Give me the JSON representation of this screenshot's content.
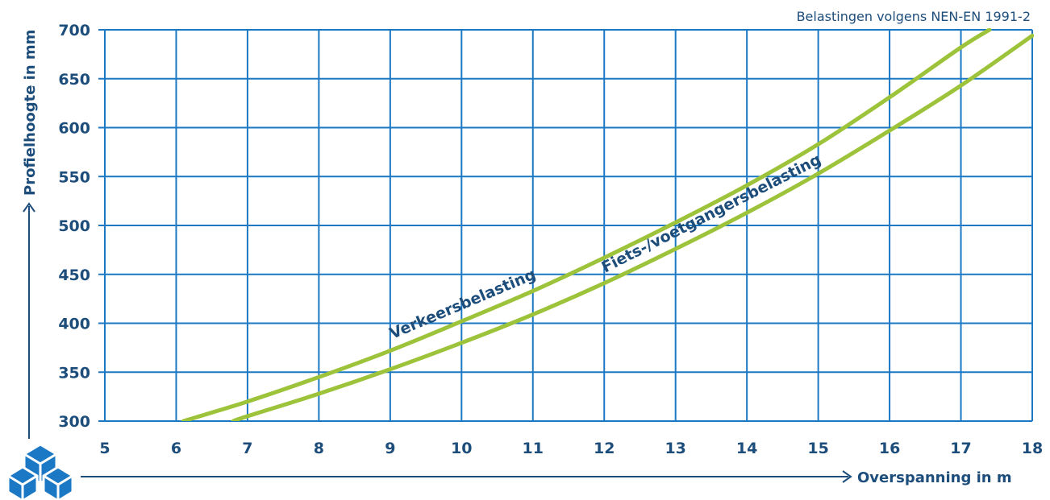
{
  "colors": {
    "grid": "#1b78c4",
    "curve": "#9dc33b",
    "text": "#1d4d7a",
    "axis": "#1d4d7a",
    "logo": "#1b78c4"
  },
  "chart_data": {
    "type": "line",
    "note": "Belastingen volgens NEN-EN 1991-2",
    "xlabel": "Overspanning in m",
    "ylabel": "Profielhoogte in mm",
    "xlim": [
      5,
      18
    ],
    "ylim": [
      300,
      700
    ],
    "xticks": [
      "5",
      "6",
      "7",
      "8",
      "9",
      "10",
      "11",
      "12",
      "13",
      "14",
      "15",
      "16",
      "17",
      "18"
    ],
    "yticks": [
      "300",
      "350",
      "400",
      "450",
      "500",
      "550",
      "600",
      "650",
      "700"
    ],
    "grid": true,
    "legend": "none",
    "series": [
      {
        "name": "Verkeersbelasting",
        "x": [
          6.1,
          7,
          8,
          9,
          10,
          11,
          12,
          13,
          14,
          15,
          16,
          17,
          17.4
        ],
        "y": [
          300,
          320,
          345,
          372,
          402,
          433,
          467,
          503,
          541,
          583,
          631,
          682,
          700
        ]
      },
      {
        "name": "Fiets-/voetgangersbelasting",
        "x": [
          6.8,
          7,
          8,
          9,
          10,
          11,
          12,
          13,
          14,
          15,
          16,
          17,
          18
        ],
        "y": [
          300,
          305,
          328,
          353,
          380,
          409,
          441,
          476,
          513,
          553,
          597,
          643,
          694
        ]
      }
    ]
  }
}
